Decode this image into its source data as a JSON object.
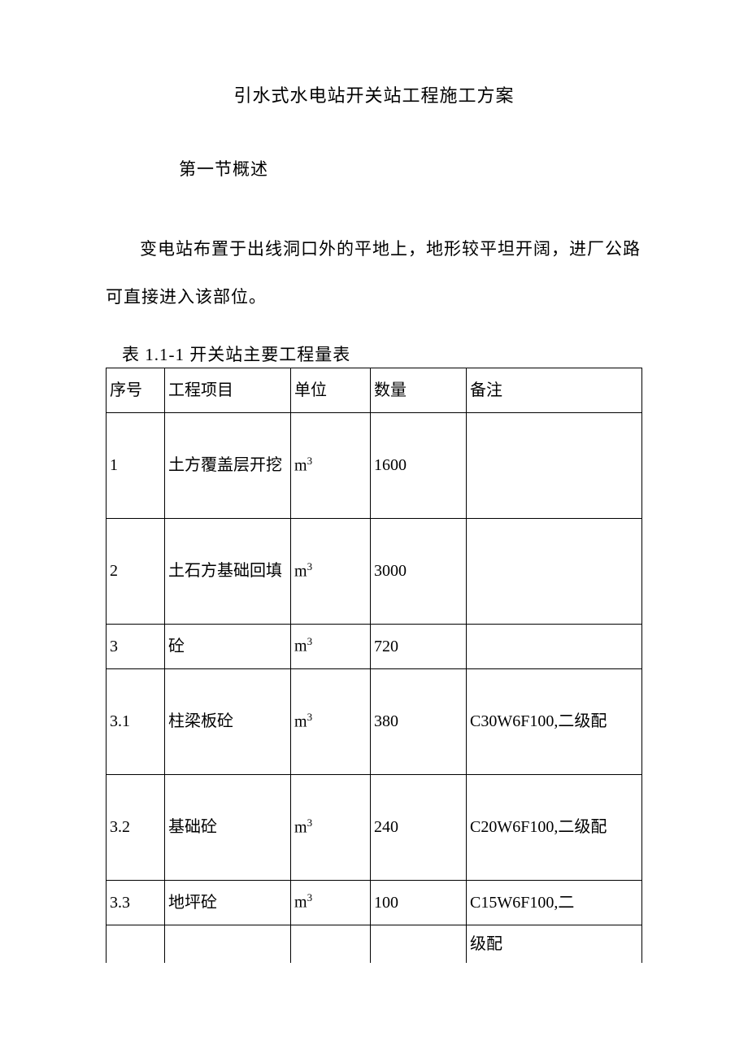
{
  "title": "引水式水电站开关站工程施工方案",
  "section_heading": "第一节概述",
  "paragraph": "变电站布置于出线洞口外的平地上，地形较平坦开阔，进厂公路可直接进入该部位。",
  "table_caption": "表 1.1-1 开关站主要工程量表",
  "table": {
    "headers": {
      "seq": "序号",
      "item": "工程项目",
      "unit": "单位",
      "qty": "数量",
      "remark": "备注"
    },
    "rows": [
      {
        "seq": "1",
        "item": "土方覆盖层开挖",
        "unit_base": "m",
        "unit_sup": "3",
        "qty": "1600",
        "remark": ""
      },
      {
        "seq": "2",
        "item": "土石方基础回填",
        "unit_base": "m",
        "unit_sup": "3",
        "qty": "3000",
        "remark": ""
      },
      {
        "seq": "3",
        "item": "砼",
        "unit_base": "m",
        "unit_sup": "3",
        "qty": "720",
        "remark": ""
      },
      {
        "seq": "3.1",
        "item": "柱梁板砼",
        "unit_base": "m",
        "unit_sup": "3",
        "qty": "380",
        "remark": "C30W6F100,二级配"
      },
      {
        "seq": "3.2",
        "item": "基础砼",
        "unit_base": "m",
        "unit_sup": "3",
        "qty": "240",
        "remark": "C20W6F100,二级配"
      },
      {
        "seq": "3.3",
        "item": "地坪砼",
        "unit_base": "m",
        "unit_sup": "3",
        "qty": "100",
        "remark": "C15W6F100,二"
      }
    ],
    "trailing_remark": "级配"
  }
}
